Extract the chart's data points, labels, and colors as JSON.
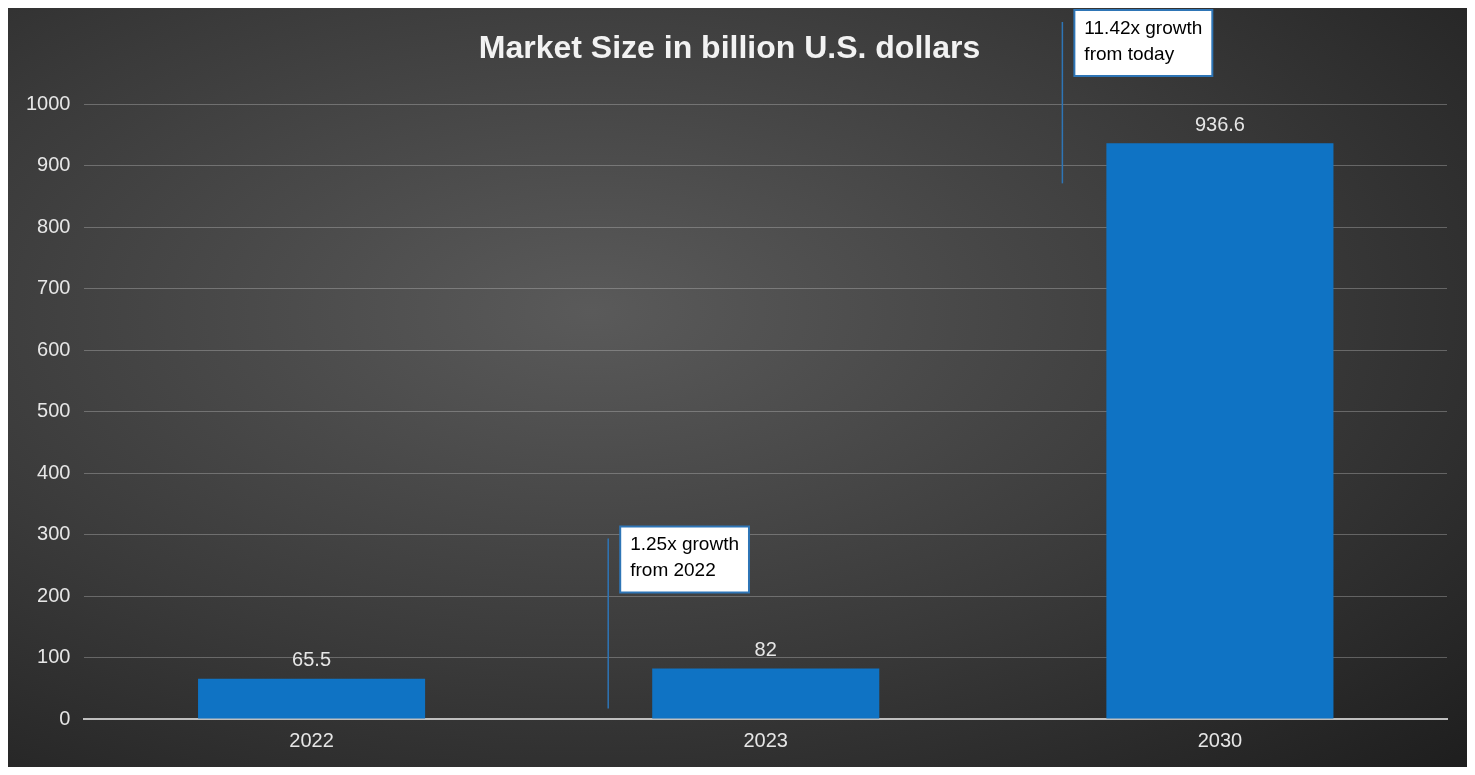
{
  "chart_data": {
    "type": "bar",
    "title": "Market Size in billion U.S. dollars",
    "categories": [
      "2022",
      "2023",
      "2030"
    ],
    "values": [
      65.5,
      82,
      936.6
    ],
    "color": "#0f73c4",
    "ylim": [
      0,
      1000
    ],
    "yticks": [
      0,
      100,
      200,
      300,
      400,
      500,
      600,
      700,
      800,
      900,
      1000
    ],
    "grid": "y",
    "data_labels": true,
    "legend": false,
    "annotations": [
      "1.25x growth from 2022",
      "11.42x growth from today"
    ]
  }
}
